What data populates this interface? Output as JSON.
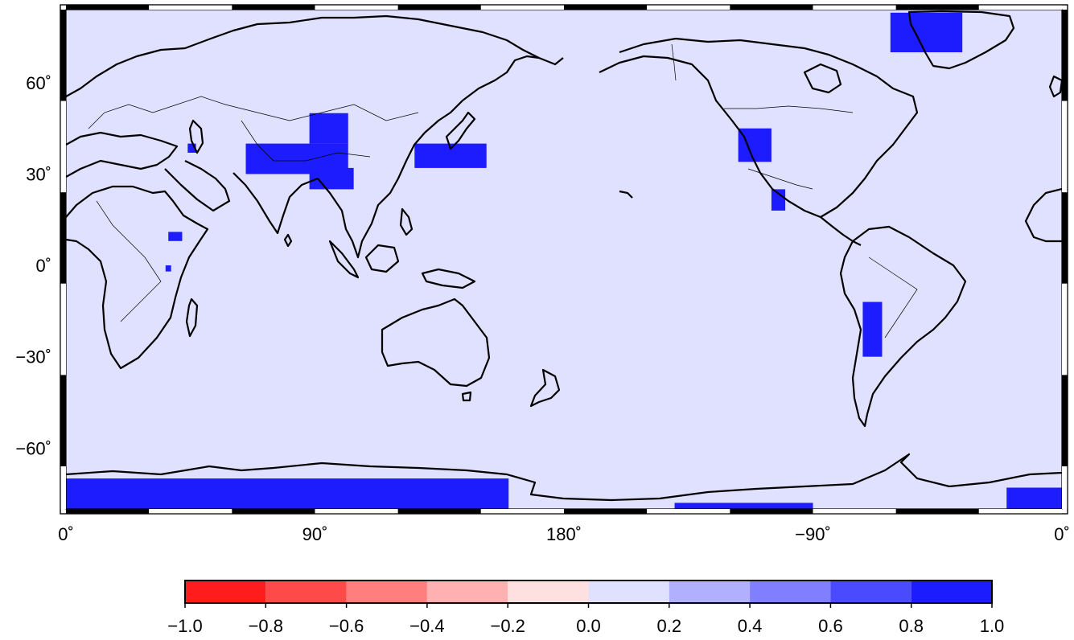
{
  "map": {
    "projection": "equirectangular",
    "lon_range": [
      0,
      360
    ],
    "lat_range": [
      -80,
      84
    ],
    "center_lon": 180,
    "background_color": "#e0e0ff",
    "coastline_color": "#000000",
    "lat_ticks": [
      {
        "value": 60,
        "label": "60˚"
      },
      {
        "value": 30,
        "label": "30˚"
      },
      {
        "value": 0,
        "label": "0˚"
      },
      {
        "value": -30,
        "label": "−30˚"
      },
      {
        "value": -60,
        "label": "−60˚"
      }
    ],
    "lon_ticks": [
      {
        "value": 0,
        "label": "0˚"
      },
      {
        "value": 90,
        "label": "90˚"
      },
      {
        "value": 180,
        "label": "180˚"
      },
      {
        "value": 270,
        "label": "−90˚"
      },
      {
        "value": 360,
        "label": "0˚"
      }
    ],
    "frame_interval_deg": 30
  },
  "field": {
    "cell_value_color": "#1c1cff",
    "regions": [
      {
        "name": "greenland",
        "lon": [
          298,
          324
        ],
        "lat": [
          70,
          83
        ]
      },
      {
        "name": "tibet-west",
        "lon": [
          65,
          102
        ],
        "lat": [
          30,
          40
        ]
      },
      {
        "name": "tibet-east",
        "lon": [
          88,
          104
        ],
        "lat": [
          25,
          32
        ]
      },
      {
        "name": "mongolia",
        "lon": [
          88,
          102
        ],
        "lat": [
          40,
          50
        ]
      },
      {
        "name": "japan-pacific",
        "lon": [
          126,
          152
        ],
        "lat": [
          32,
          40
        ]
      },
      {
        "name": "caucasus",
        "lon": [
          44,
          47
        ],
        "lat": [
          37,
          40
        ]
      },
      {
        "name": "ethiopia",
        "lon": [
          37,
          42
        ],
        "lat": [
          8,
          11
        ]
      },
      {
        "name": "east-africa-dot",
        "lon": [
          36,
          38
        ],
        "lat": [
          -2,
          0
        ]
      },
      {
        "name": "us-rockies",
        "lon": [
          243,
          255
        ],
        "lat": [
          34,
          45
        ]
      },
      {
        "name": "mexico",
        "lon": [
          255,
          260
        ],
        "lat": [
          18,
          25
        ]
      },
      {
        "name": "andes",
        "lon": [
          288,
          295
        ],
        "lat": [
          -30,
          -12
        ]
      },
      {
        "name": "antarctica-east",
        "lon": [
          0,
          160
        ],
        "lat": [
          -80,
          -70
        ]
      },
      {
        "name": "antarctica-ross",
        "lon": [
          220,
          270
        ],
        "lat": [
          -80,
          -78
        ]
      },
      {
        "name": "antarctica-weddell",
        "lon": [
          340,
          360
        ],
        "lat": [
          -80,
          -73
        ]
      }
    ]
  },
  "colorbar": {
    "range": [
      -1.0,
      1.0
    ],
    "segments": [
      {
        "from": -1.0,
        "to": -0.8,
        "color": "#ff1c1c"
      },
      {
        "from": -0.8,
        "to": -0.6,
        "color": "#ff4a4a"
      },
      {
        "from": -0.6,
        "to": -0.4,
        "color": "#ff7f7f"
      },
      {
        "from": -0.4,
        "to": -0.2,
        "color": "#ffb0b0"
      },
      {
        "from": -0.2,
        "to": 0.0,
        "color": "#ffe0e0"
      },
      {
        "from": 0.0,
        "to": 0.2,
        "color": "#e0e0ff"
      },
      {
        "from": 0.2,
        "to": 0.4,
        "color": "#b0b0ff"
      },
      {
        "from": 0.4,
        "to": 0.6,
        "color": "#7f7fff"
      },
      {
        "from": 0.6,
        "to": 0.8,
        "color": "#4a4aff"
      },
      {
        "from": 0.8,
        "to": 1.0,
        "color": "#1c1cff"
      }
    ],
    "tick_labels": [
      "−1.0",
      "−0.8",
      "−0.6",
      "−0.4",
      "−0.2",
      "0.0",
      "0.2",
      "0.4",
      "0.6",
      "0.8",
      "1.0"
    ]
  }
}
